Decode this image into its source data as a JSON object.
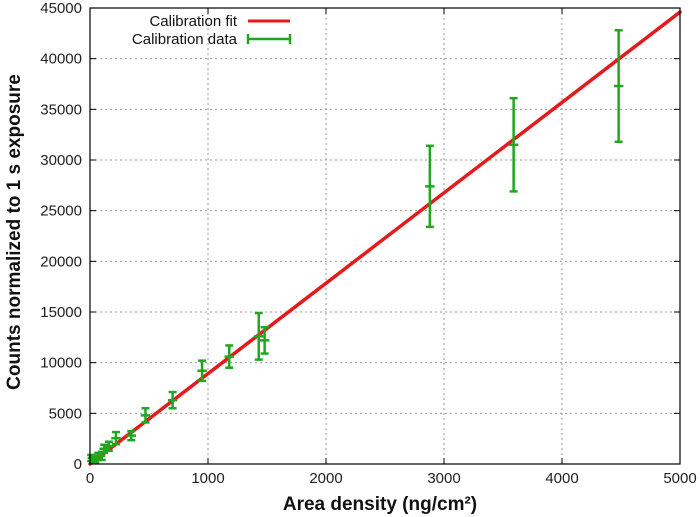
{
  "chart_data": {
    "type": "scatter",
    "title": "",
    "xlabel": "Area density (ng/cm²)",
    "ylabel": "Counts normalized to 1 s exposure",
    "xlim": [
      0,
      5000
    ],
    "ylim": [
      0,
      45000
    ],
    "x_ticks": [
      0,
      1000,
      2000,
      3000,
      4000,
      5000
    ],
    "y_ticks": [
      0,
      5000,
      10000,
      15000,
      20000,
      25000,
      30000,
      35000,
      40000,
      45000
    ],
    "grid": true,
    "legend_position": "top-left",
    "series": [
      {
        "name": "Calibration fit",
        "kind": "line",
        "color": "#e41a1c",
        "x": [
          0,
          5000
        ],
        "y": [
          0,
          44600
        ]
      },
      {
        "name": "Calibration data",
        "kind": "errorbar",
        "color": "#1fa81f",
        "points": [
          {
            "x": 10,
            "y": 600,
            "yerr": 300,
            "xerr": 30
          },
          {
            "x": 25,
            "y": 550,
            "yerr": 300,
            "xerr": 30
          },
          {
            "x": 45,
            "y": 400,
            "yerr": 250,
            "xerr": 30
          },
          {
            "x": 70,
            "y": 750,
            "yerr": 350,
            "xerr": 30
          },
          {
            "x": 100,
            "y": 800,
            "yerr": 400,
            "xerr": 30
          },
          {
            "x": 120,
            "y": 1500,
            "yerr": 400,
            "xerr": 40
          },
          {
            "x": 160,
            "y": 1750,
            "yerr": 450,
            "xerr": 40
          },
          {
            "x": 220,
            "y": 2550,
            "yerr": 600,
            "xerr": 40
          },
          {
            "x": 350,
            "y": 2800,
            "yerr": 450,
            "xerr": 40
          },
          {
            "x": 470,
            "y": 4800,
            "yerr": 700,
            "xerr": 40
          },
          {
            "x": 700,
            "y": 6300,
            "yerr": 800,
            "xerr": 40
          },
          {
            "x": 950,
            "y": 9200,
            "yerr": 1000,
            "xerr": 40
          },
          {
            "x": 1180,
            "y": 10600,
            "yerr": 1100,
            "xerr": 40
          },
          {
            "x": 1430,
            "y": 12600,
            "yerr": 2300,
            "xerr": 40
          },
          {
            "x": 1480,
            "y": 12200,
            "yerr": 1300,
            "xerr": 40
          },
          {
            "x": 2880,
            "y": 27400,
            "yerr": 4000,
            "xerr": 40
          },
          {
            "x": 3590,
            "y": 31500,
            "yerr": 4600,
            "xerr": 40
          },
          {
            "x": 4480,
            "y": 37300,
            "yerr": 5500,
            "xerr": 40
          }
        ]
      }
    ]
  }
}
